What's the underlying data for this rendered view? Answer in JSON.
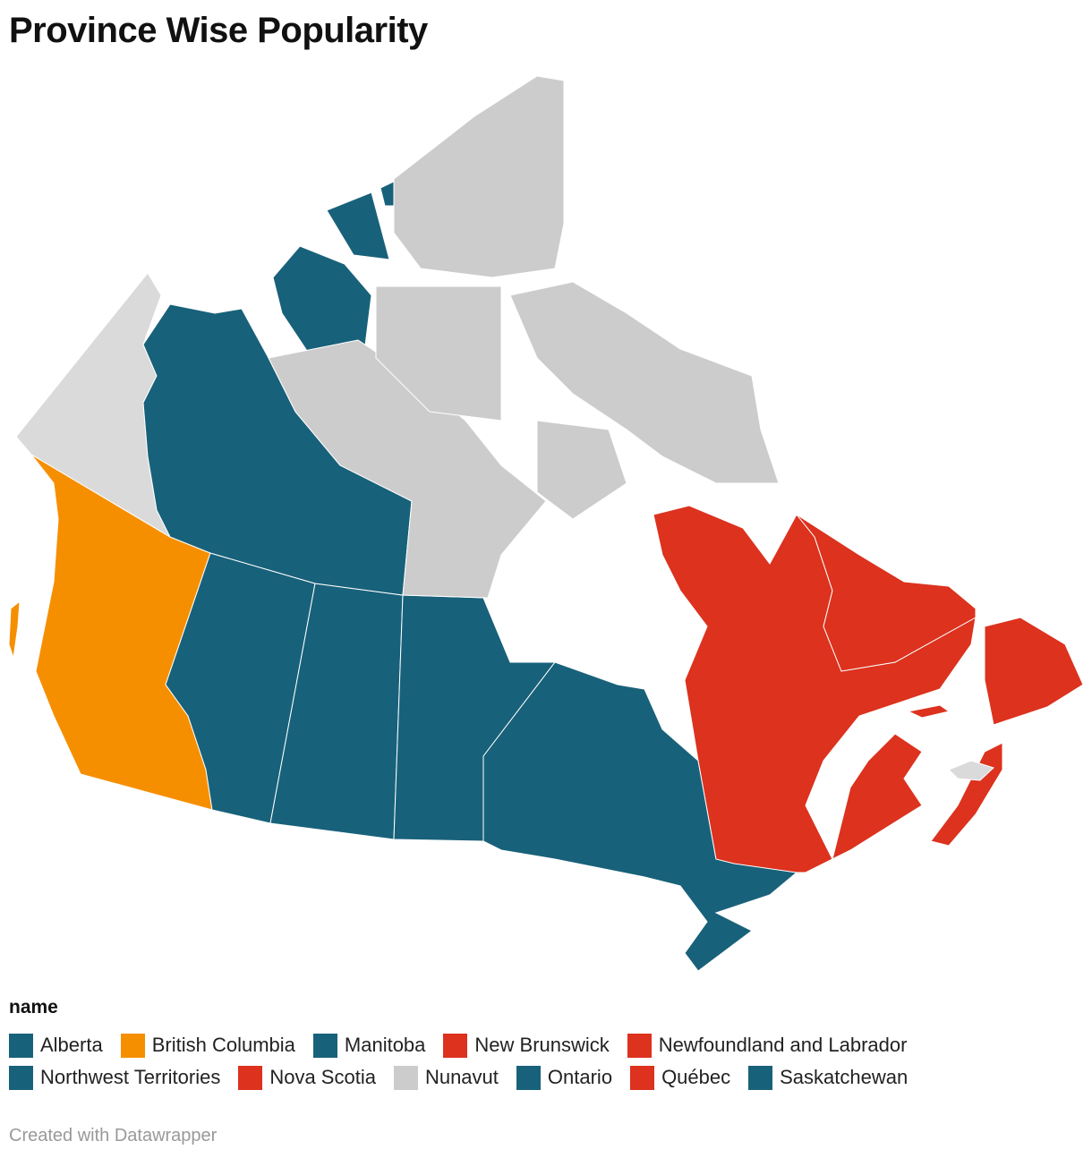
{
  "title": "Province Wise Popularity",
  "legend": {
    "title": "name",
    "rows": [
      [
        {
          "label": "Alberta",
          "color": "#18617a"
        },
        {
          "label": "British Columbia",
          "color": "#f68f00"
        },
        {
          "label": "Manitoba",
          "color": "#18617a"
        },
        {
          "label": "New Brunswick",
          "color": "#dc321e"
        },
        {
          "label": "Newfoundland and Labrador",
          "color": "#dc321e"
        }
      ],
      [
        {
          "label": "Northwest Territories",
          "color": "#18617a"
        },
        {
          "label": "Nova Scotia",
          "color": "#dc321e"
        },
        {
          "label": "Nunavut",
          "color": "#cccccc"
        },
        {
          "label": "Ontario",
          "color": "#18617a"
        },
        {
          "label": "Québec",
          "color": "#dc321e"
        },
        {
          "label": "Saskatchewan",
          "color": "#18617a"
        }
      ]
    ]
  },
  "no_data_color": "#dadada",
  "credit": "Created with Datawrapper"
}
